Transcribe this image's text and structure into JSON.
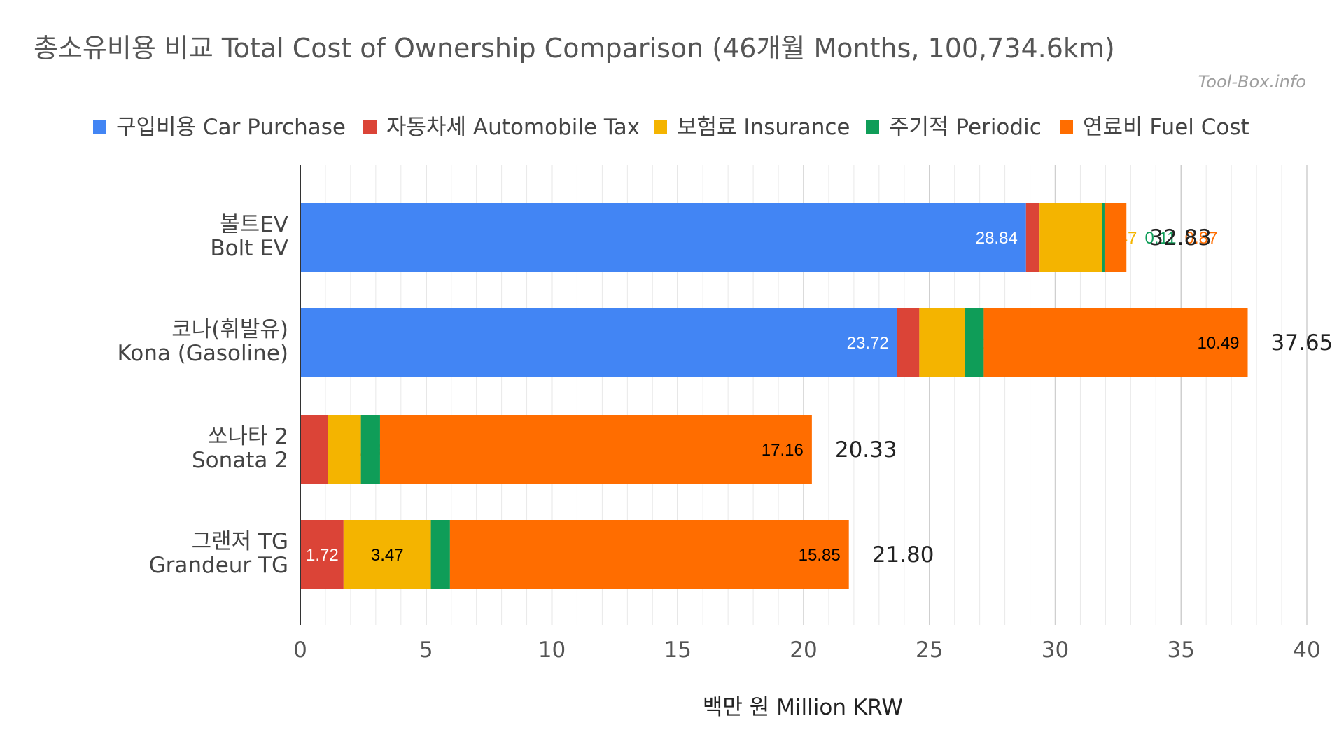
{
  "chart_data": {
    "type": "bar",
    "orientation": "horizontal",
    "stacked": true,
    "title": "총소유비용 비교 Total Cost of Ownership Comparison (46개월 Months, 100,734.6km)",
    "watermark": "Tool-Box.info",
    "xlabel": "백만 원 Million KRW",
    "xlim": [
      0,
      40
    ],
    "xticks": [
      0,
      5,
      10,
      15,
      20,
      25,
      30,
      35,
      40
    ],
    "grid": true,
    "legend_position": "top",
    "categories": [
      "볼트EV\nBolt EV",
      "코나(휘발유)\nKona (Gasoline)",
      "쏘나타 2\nSonata 2",
      "그랜저 TG\nGrandeur TG"
    ],
    "series": [
      {
        "name": "구입비용 Car Purchase",
        "color": "#4285f4",
        "values": [
          28.84,
          23.72,
          0,
          0
        ],
        "labels": [
          "28.84",
          "23.72",
          "",
          ""
        ]
      },
      {
        "name": "자동차세 Automobile Tax",
        "color": "#db4437",
        "values": [
          0.54,
          0.88,
          1.09,
          1.72
        ],
        "labels": [
          "0.54",
          "0.88",
          "1.09",
          "1.72"
        ]
      },
      {
        "name": "보험료 Insurance",
        "color": "#f4b400",
        "values": [
          2.47,
          1.8,
          1.32,
          3.47
        ],
        "labels": [
          "2.47",
          "1.80",
          "1.32",
          "3.47"
        ]
      },
      {
        "name": "주기적 Periodic",
        "color": "#0f9d58",
        "values": [
          0.11,
          0.76,
          0.76,
          0.76
        ],
        "labels": [
          "0.11",
          "0.76",
          "0.76",
          "0.76"
        ]
      },
      {
        "name": "연료비 Fuel Cost",
        "color": "#ff6d00",
        "values": [
          0.87,
          10.49,
          17.16,
          15.85
        ],
        "labels": [
          "0.87",
          "10.49",
          "17.16",
          "15.85"
        ]
      }
    ],
    "totals": [
      "32.83",
      "37.65",
      "20.33",
      "21.80"
    ]
  }
}
